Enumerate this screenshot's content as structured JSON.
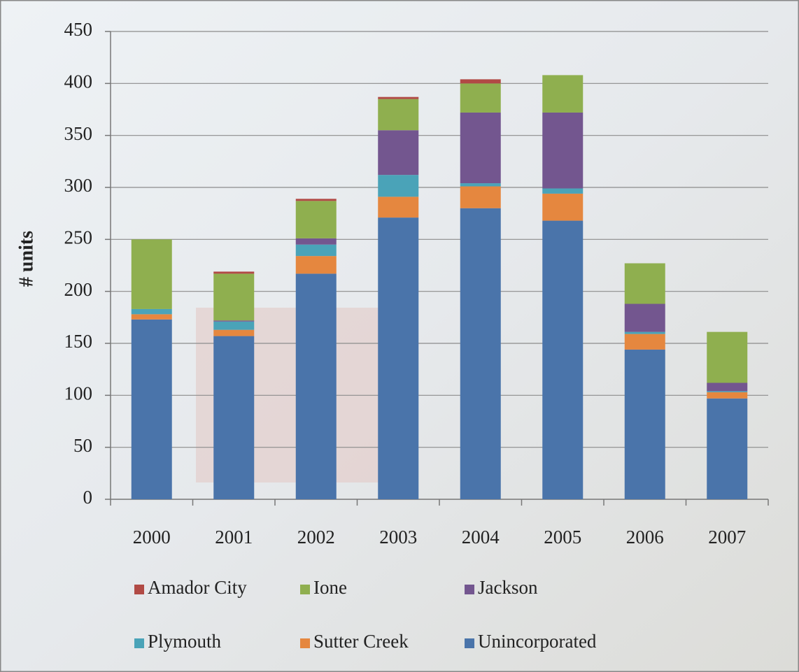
{
  "chart_data": {
    "type": "stacked-bar",
    "y_label": "# units",
    "categories": [
      "2000",
      "2001",
      "2002",
      "2003",
      "2004",
      "2005",
      "2006",
      "2007"
    ],
    "series": [
      {
        "name": "Unincorporated",
        "color": "#4a74aa",
        "values": [
          173,
          157,
          217,
          271,
          280,
          268,
          144,
          97
        ]
      },
      {
        "name": "Sutter Creek",
        "color": "#e5873f",
        "values": [
          5,
          6,
          17,
          20,
          21,
          26,
          15,
          6
        ]
      },
      {
        "name": "Plymouth",
        "color": "#4aa3b8",
        "values": [
          5,
          8,
          11,
          21,
          3,
          5,
          2,
          1
        ]
      },
      {
        "name": "Jackson",
        "color": "#73568f",
        "values": [
          0,
          1,
          6,
          43,
          68,
          73,
          27,
          8
        ]
      },
      {
        "name": "Ione",
        "color": "#8faf4f",
        "values": [
          67,
          45,
          36,
          30,
          28,
          36,
          39,
          49
        ]
      },
      {
        "name": "Amador City",
        "color": "#b14a45",
        "values": [
          0,
          2,
          2,
          2,
          4,
          0,
          0,
          0
        ]
      }
    ],
    "ylim": [
      0,
      450
    ],
    "yticks": [
      0,
      50,
      100,
      150,
      200,
      250,
      300,
      350,
      400,
      450
    ],
    "grid": true
  }
}
